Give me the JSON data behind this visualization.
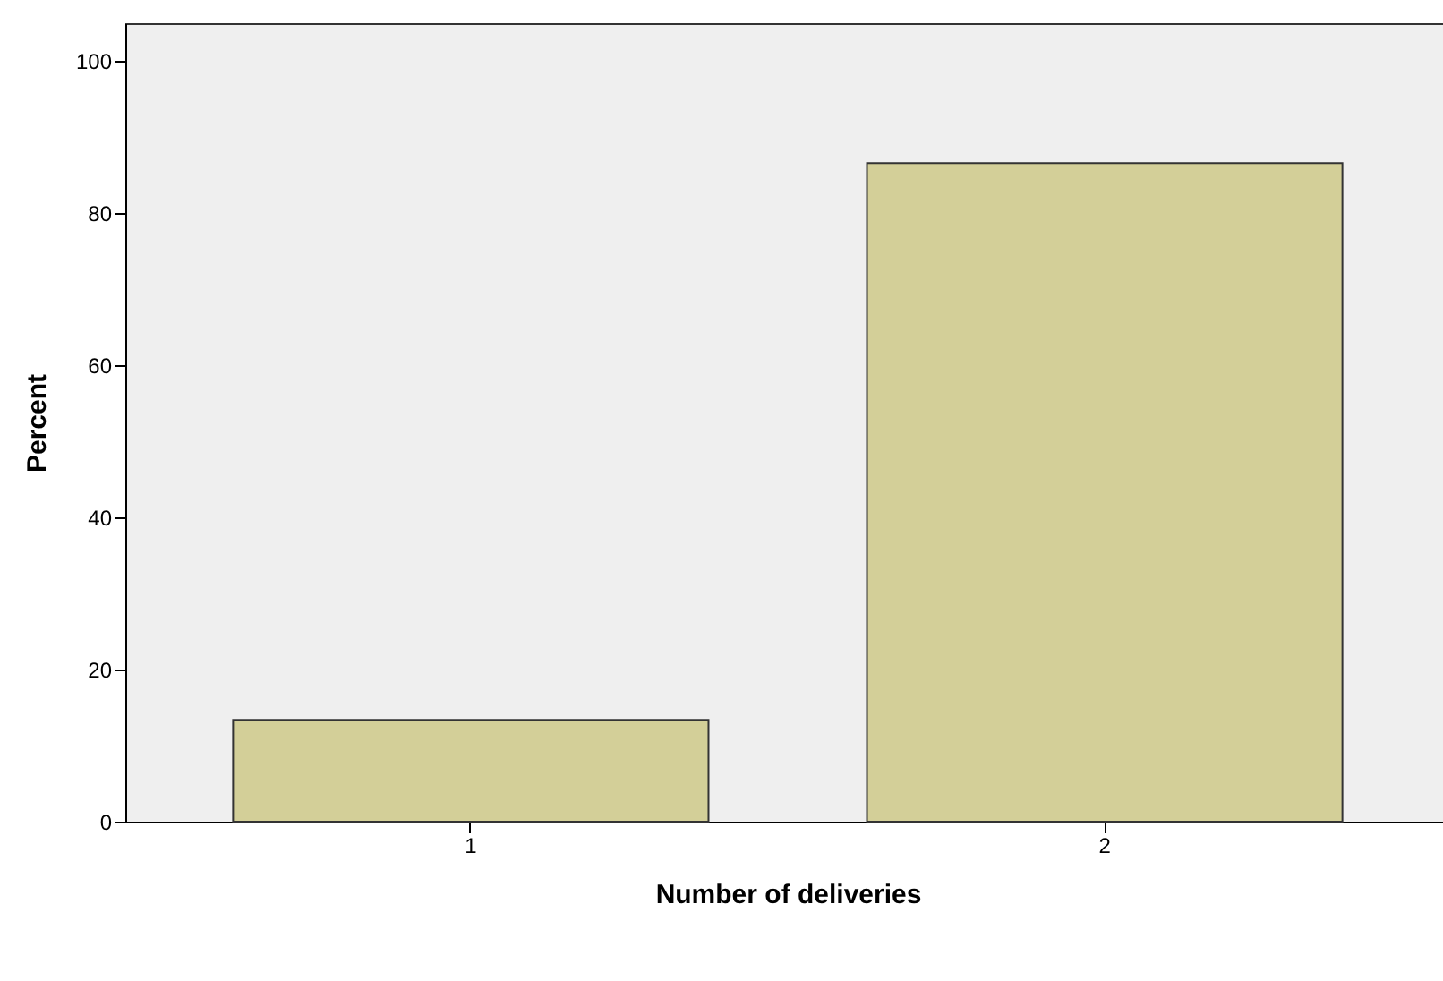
{
  "chart_data": {
    "type": "bar",
    "xlabel": "Number of deliveries",
    "ylabel": "Percent",
    "categories": [
      "1",
      "2"
    ],
    "values": [
      13.4,
      86.6
    ],
    "color": "#d3cf98",
    "ylim": [
      0,
      105
    ],
    "yticks": [
      0,
      20,
      40,
      60,
      80,
      100
    ],
    "grid": false
  }
}
